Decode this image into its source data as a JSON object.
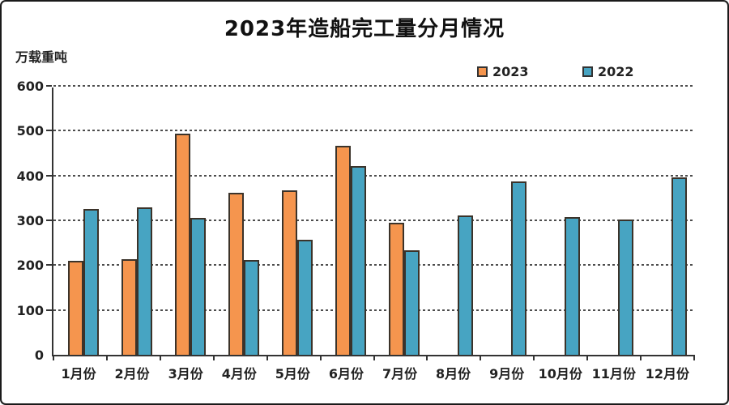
{
  "window": {
    "background": "#ffffff",
    "frame_border_color": "#1a1a1a"
  },
  "chart_data": {
    "type": "bar",
    "title": "2023年造船完工量分月情况",
    "unit_label": "万载重吨",
    "categories": [
      "1月份",
      "2月份",
      "3月份",
      "4月份",
      "5月份",
      "6月份",
      "7月份",
      "8月份",
      "9月份",
      "10月份",
      "11月份",
      "12月份"
    ],
    "series": [
      {
        "name": "2023",
        "color": "#F5954E",
        "values": [
          210,
          213,
          494,
          362,
          367,
          466,
          295,
          null,
          null,
          null,
          null,
          null
        ]
      },
      {
        "name": "2022",
        "color": "#47A4C2",
        "values": [
          325,
          329,
          306,
          211,
          257,
          421,
          234,
          310,
          386,
          307,
          302,
          395
        ]
      }
    ],
    "ylim": [
      0,
      600
    ],
    "yticks": [
      0,
      100,
      200,
      300,
      400,
      500,
      600
    ],
    "grid": "horizontal-dashed",
    "legend_position": "top-right",
    "bar_outline_color": "#3b332a",
    "axis_color": "#333333"
  }
}
